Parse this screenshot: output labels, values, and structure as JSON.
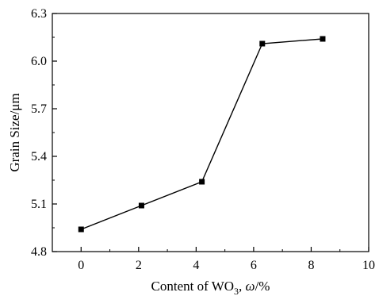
{
  "chart_data": {
    "type": "line",
    "title": "",
    "xlabel": {
      "prefix": "Content of WO",
      "subscript": "3",
      "separator": ", ",
      "symbol": "ω",
      "suffix": "/%"
    },
    "ylabel": "Grain Size/μm",
    "xlim": [
      -1,
      10
    ],
    "ylim": [
      4.8,
      6.3
    ],
    "x_ticks": [
      0,
      2,
      4,
      6,
      8,
      10
    ],
    "x_tick_labels": [
      "0",
      "2",
      "4",
      "6",
      "8",
      "10"
    ],
    "y_ticks": [
      4.8,
      5.1,
      5.4,
      5.7,
      6.0,
      6.3
    ],
    "y_tick_labels": [
      "4.8",
      "5.1",
      "5.4",
      "5.7",
      "6.0",
      "6.3"
    ],
    "grid": false,
    "legend": "none",
    "series": [
      {
        "x": [
          0,
          2.1,
          4.2,
          6.3,
          8.4
        ],
        "y": [
          4.94,
          5.09,
          5.24,
          6.11,
          6.14
        ],
        "marker": "square",
        "color": "#000000"
      }
    ]
  }
}
